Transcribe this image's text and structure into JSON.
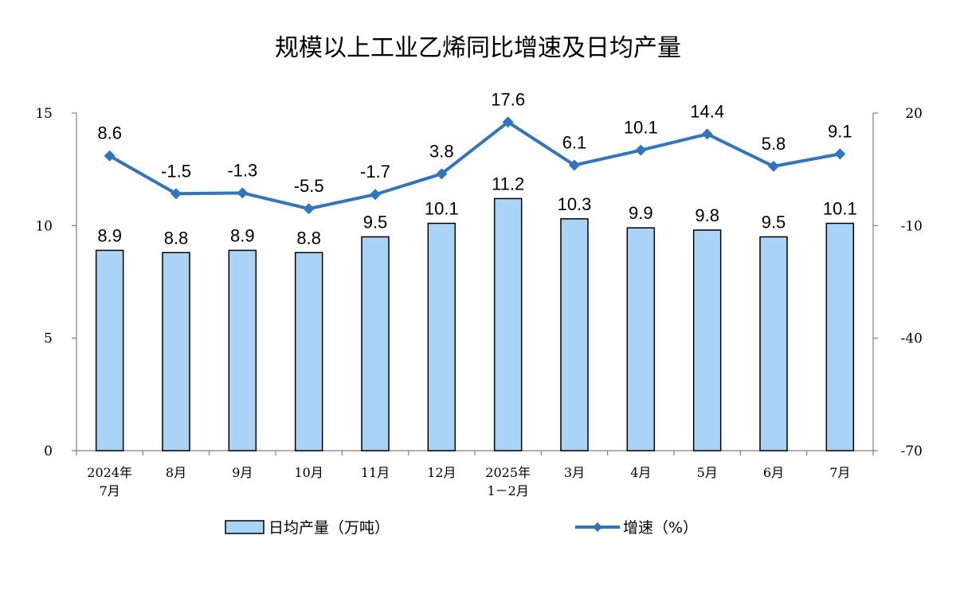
{
  "chart_data": {
    "type": "bar",
    "title": "规模以上工业乙烯同比增速及日均产量",
    "categories": [
      [
        "2024年",
        "7月"
      ],
      [
        "8月"
      ],
      [
        "9月"
      ],
      [
        "10月"
      ],
      [
        "11月"
      ],
      [
        "12月"
      ],
      [
        "2025年",
        "1－2月"
      ],
      [
        "3月"
      ],
      [
        "4月"
      ],
      [
        "5月"
      ],
      [
        "6月"
      ],
      [
        "7月"
      ]
    ],
    "series": [
      {
        "name": "日均产量（万吨）",
        "type": "bar",
        "axis": "left",
        "color": "#a9d3f7",
        "values": [
          8.9,
          8.8,
          8.9,
          8.8,
          9.5,
          10.1,
          11.2,
          10.3,
          9.9,
          9.8,
          9.5,
          10.1
        ]
      },
      {
        "name": "增速（%）",
        "type": "line",
        "axis": "right",
        "color": "#2e75c6",
        "values": [
          8.6,
          -1.5,
          -1.3,
          -5.5,
          -1.7,
          3.8,
          17.6,
          6.1,
          10.1,
          14.4,
          5.8,
          9.1
        ]
      }
    ],
    "y_left": {
      "ylim": [
        0,
        15
      ],
      "ticks": [
        "0",
        "5",
        "10",
        "15"
      ]
    },
    "y_right": {
      "ylim": [
        -70,
        20
      ],
      "ticks": [
        "-70",
        "-40",
        "-10",
        "20"
      ]
    },
    "grid": false,
    "legend_position": "bottom"
  }
}
